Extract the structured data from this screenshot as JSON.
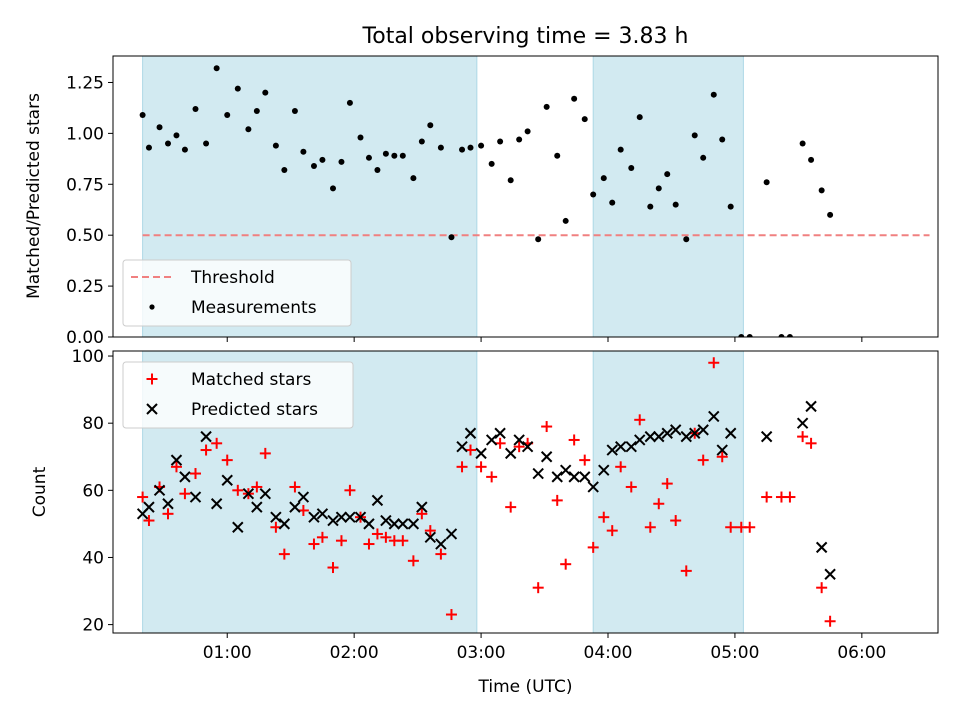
{
  "chart_data": [
    {
      "type": "scatter",
      "title": "Total observing time = 3.83 h",
      "xlabel": "",
      "ylabel": "Matched/Predicted stars",
      "xlim": [
        "00:06",
        "06:36"
      ],
      "ylim": [
        0,
        1.38
      ],
      "x_ticks": [
        "01:00",
        "02:00",
        "03:00",
        "04:00",
        "05:00",
        "06:00"
      ],
      "y_ticks": [
        "0.00",
        "0.25",
        "0.50",
        "0.75",
        "1.00",
        "1.25"
      ],
      "shaded_intervals": [
        [
          "00:20",
          "02:58"
        ],
        [
          "03:53",
          "05:04"
        ]
      ],
      "shade_color": "#add8e6",
      "threshold": {
        "name": "Threshold",
        "value": 0.5,
        "x_range": [
          "00:20",
          "06:32"
        ],
        "color": "#f08080",
        "style": "dashed"
      },
      "series": [
        {
          "name": "Measurements",
          "marker": "dot",
          "color": "#000000",
          "points": [
            [
              "00:20",
              1.09
            ],
            [
              "00:23",
              0.93
            ],
            [
              "00:28",
              1.03
            ],
            [
              "00:32",
              0.95
            ],
            [
              "00:36",
              0.99
            ],
            [
              "00:40",
              0.92
            ],
            [
              "00:45",
              1.12
            ],
            [
              "00:50",
              0.95
            ],
            [
              "00:55",
              1.32
            ],
            [
              "01:00",
              1.09
            ],
            [
              "01:05",
              1.22
            ],
            [
              "01:10",
              1.02
            ],
            [
              "01:14",
              1.11
            ],
            [
              "01:18",
              1.2
            ],
            [
              "01:23",
              0.94
            ],
            [
              "01:27",
              0.82
            ],
            [
              "01:32",
              1.11
            ],
            [
              "01:36",
              0.91
            ],
            [
              "01:41",
              0.84
            ],
            [
              "01:45",
              0.87
            ],
            [
              "01:50",
              0.73
            ],
            [
              "01:54",
              0.86
            ],
            [
              "01:58",
              1.15
            ],
            [
              "02:03",
              0.98
            ],
            [
              "02:07",
              0.88
            ],
            [
              "02:11",
              0.82
            ],
            [
              "02:15",
              0.9
            ],
            [
              "02:19",
              0.89
            ],
            [
              "02:23",
              0.89
            ],
            [
              "02:28",
              0.78
            ],
            [
              "02:32",
              0.96
            ],
            [
              "02:36",
              1.04
            ],
            [
              "02:41",
              0.93
            ],
            [
              "02:46",
              0.49
            ],
            [
              "02:51",
              0.92
            ],
            [
              "02:55",
              0.93
            ],
            [
              "03:00",
              0.94
            ],
            [
              "03:05",
              0.85
            ],
            [
              "03:09",
              0.96
            ],
            [
              "03:14",
              0.77
            ],
            [
              "03:18",
              0.97
            ],
            [
              "03:22",
              1.01
            ],
            [
              "03:27",
              0.48
            ],
            [
              "03:31",
              1.13
            ],
            [
              "03:36",
              0.89
            ],
            [
              "03:40",
              0.57
            ],
            [
              "03:44",
              1.17
            ],
            [
              "03:49",
              1.07
            ],
            [
              "03:53",
              0.7
            ],
            [
              "03:58",
              0.78
            ],
            [
              "04:02",
              0.66
            ],
            [
              "04:06",
              0.92
            ],
            [
              "04:11",
              0.83
            ],
            [
              "04:15",
              1.08
            ],
            [
              "04:20",
              0.64
            ],
            [
              "04:24",
              0.73
            ],
            [
              "04:28",
              0.8
            ],
            [
              "04:32",
              0.65
            ],
            [
              "04:37",
              0.48
            ],
            [
              "04:41",
              0.99
            ],
            [
              "04:45",
              0.88
            ],
            [
              "04:50",
              1.19
            ],
            [
              "04:54",
              0.97
            ],
            [
              "04:58",
              0.64
            ],
            [
              "05:03",
              0.0
            ],
            [
              "05:07",
              0.0
            ],
            [
              "05:15",
              0.76
            ],
            [
              "05:22",
              0.0
            ],
            [
              "05:26",
              0.0
            ],
            [
              "05:32",
              0.95
            ],
            [
              "05:36",
              0.87
            ],
            [
              "05:41",
              0.72
            ],
            [
              "05:45",
              0.6
            ]
          ]
        }
      ],
      "legend": {
        "position": "lower-left",
        "entries": [
          "Threshold",
          "Measurements"
        ]
      }
    },
    {
      "type": "scatter",
      "title": "",
      "xlabel": "Time (UTC)",
      "ylabel": "Count",
      "xlim": [
        "00:06",
        "06:36"
      ],
      "ylim": [
        17.5,
        101.5
      ],
      "x_ticks": [
        "01:00",
        "02:00",
        "03:00",
        "04:00",
        "05:00",
        "06:00"
      ],
      "y_ticks": [
        "20",
        "40",
        "60",
        "80",
        "100"
      ],
      "shaded_intervals": [
        [
          "00:20",
          "02:58"
        ],
        [
          "03:53",
          "05:04"
        ]
      ],
      "shade_color": "#add8e6",
      "series": [
        {
          "name": "Matched stars",
          "marker": "plus",
          "color": "#ff0000",
          "points": [
            [
              "00:20",
              58
            ],
            [
              "00:23",
              51
            ],
            [
              "00:28",
              61
            ],
            [
              "00:32",
              53
            ],
            [
              "00:36",
              67
            ],
            [
              "00:40",
              59
            ],
            [
              "00:45",
              65
            ],
            [
              "00:50",
              72
            ],
            [
              "00:55",
              74
            ],
            [
              "01:00",
              69
            ],
            [
              "01:05",
              60
            ],
            [
              "01:10",
              59
            ],
            [
              "01:14",
              61
            ],
            [
              "01:18",
              71
            ],
            [
              "01:23",
              49
            ],
            [
              "01:27",
              41
            ],
            [
              "01:32",
              61
            ],
            [
              "01:36",
              54
            ],
            [
              "01:41",
              44
            ],
            [
              "01:45",
              46
            ],
            [
              "01:50",
              37
            ],
            [
              "01:54",
              45
            ],
            [
              "01:58",
              60
            ],
            [
              "02:03",
              52
            ],
            [
              "02:07",
              44
            ],
            [
              "02:11",
              47
            ],
            [
              "02:15",
              46
            ],
            [
              "02:19",
              45
            ],
            [
              "02:23",
              45
            ],
            [
              "02:28",
              39
            ],
            [
              "02:32",
              53
            ],
            [
              "02:36",
              48
            ],
            [
              "02:41",
              41
            ],
            [
              "02:46",
              23
            ],
            [
              "02:51",
              67
            ],
            [
              "02:55",
              72
            ],
            [
              "03:00",
              67
            ],
            [
              "03:05",
              64
            ],
            [
              "03:09",
              74
            ],
            [
              "03:14",
              55
            ],
            [
              "03:18",
              73
            ],
            [
              "03:22",
              74
            ],
            [
              "03:27",
              31
            ],
            [
              "03:31",
              79
            ],
            [
              "03:36",
              57
            ],
            [
              "03:40",
              38
            ],
            [
              "03:44",
              75
            ],
            [
              "03:49",
              69
            ],
            [
              "03:53",
              43
            ],
            [
              "03:58",
              52
            ],
            [
              "04:02",
              48
            ],
            [
              "04:06",
              67
            ],
            [
              "04:11",
              61
            ],
            [
              "04:15",
              81
            ],
            [
              "04:20",
              49
            ],
            [
              "04:24",
              56
            ],
            [
              "04:28",
              62
            ],
            [
              "04:32",
              51
            ],
            [
              "04:37",
              36
            ],
            [
              "04:41",
              77
            ],
            [
              "04:45",
              69
            ],
            [
              "04:50",
              98
            ],
            [
              "04:54",
              70
            ],
            [
              "04:58",
              49
            ],
            [
              "05:03",
              49
            ],
            [
              "05:07",
              49
            ],
            [
              "05:15",
              58
            ],
            [
              "05:22",
              58
            ],
            [
              "05:26",
              58
            ],
            [
              "05:32",
              76
            ],
            [
              "05:36",
              74
            ],
            [
              "05:41",
              31
            ],
            [
              "05:45",
              21
            ]
          ]
        },
        {
          "name": "Predicted stars",
          "marker": "x",
          "color": "#000000",
          "points": [
            [
              "00:20",
              53
            ],
            [
              "00:23",
              55
            ],
            [
              "00:28",
              60
            ],
            [
              "00:32",
              56
            ],
            [
              "00:36",
              69
            ],
            [
              "00:40",
              64
            ],
            [
              "00:45",
              58
            ],
            [
              "00:50",
              76
            ],
            [
              "00:55",
              56
            ],
            [
              "01:00",
              63
            ],
            [
              "01:05",
              49
            ],
            [
              "01:10",
              59
            ],
            [
              "01:14",
              55
            ],
            [
              "01:18",
              59
            ],
            [
              "01:23",
              52
            ],
            [
              "01:27",
              50
            ],
            [
              "01:32",
              55
            ],
            [
              "01:36",
              58
            ],
            [
              "01:41",
              52
            ],
            [
              "01:45",
              53
            ],
            [
              "01:50",
              51
            ],
            [
              "01:54",
              52
            ],
            [
              "01:58",
              52
            ],
            [
              "02:03",
              52
            ],
            [
              "02:07",
              50
            ],
            [
              "02:11",
              57
            ],
            [
              "02:15",
              51
            ],
            [
              "02:19",
              50
            ],
            [
              "02:23",
              50
            ],
            [
              "02:28",
              50
            ],
            [
              "02:32",
              55
            ],
            [
              "02:36",
              46
            ],
            [
              "02:41",
              44
            ],
            [
              "02:46",
              47
            ],
            [
              "02:51",
              73
            ],
            [
              "02:55",
              77
            ],
            [
              "03:00",
              71
            ],
            [
              "03:05",
              75
            ],
            [
              "03:09",
              77
            ],
            [
              "03:14",
              71
            ],
            [
              "03:18",
              75
            ],
            [
              "03:22",
              73
            ],
            [
              "03:27",
              65
            ],
            [
              "03:31",
              70
            ],
            [
              "03:36",
              64
            ],
            [
              "03:40",
              66
            ],
            [
              "03:44",
              64
            ],
            [
              "03:49",
              64
            ],
            [
              "03:53",
              61
            ],
            [
              "03:58",
              66
            ],
            [
              "04:02",
              72
            ],
            [
              "04:06",
              73
            ],
            [
              "04:11",
              73
            ],
            [
              "04:15",
              75
            ],
            [
              "04:20",
              76
            ],
            [
              "04:24",
              76
            ],
            [
              "04:28",
              77
            ],
            [
              "04:32",
              78
            ],
            [
              "04:37",
              76
            ],
            [
              "04:41",
              77
            ],
            [
              "04:45",
              78
            ],
            [
              "04:50",
              82
            ],
            [
              "04:54",
              72
            ],
            [
              "04:58",
              77
            ],
            [
              "05:15",
              76
            ],
            [
              "05:32",
              80
            ],
            [
              "05:36",
              85
            ],
            [
              "05:41",
              43
            ],
            [
              "05:45",
              35
            ]
          ]
        }
      ],
      "legend": {
        "position": "upper-left",
        "entries": [
          "Matched stars",
          "Predicted stars"
        ]
      }
    }
  ]
}
